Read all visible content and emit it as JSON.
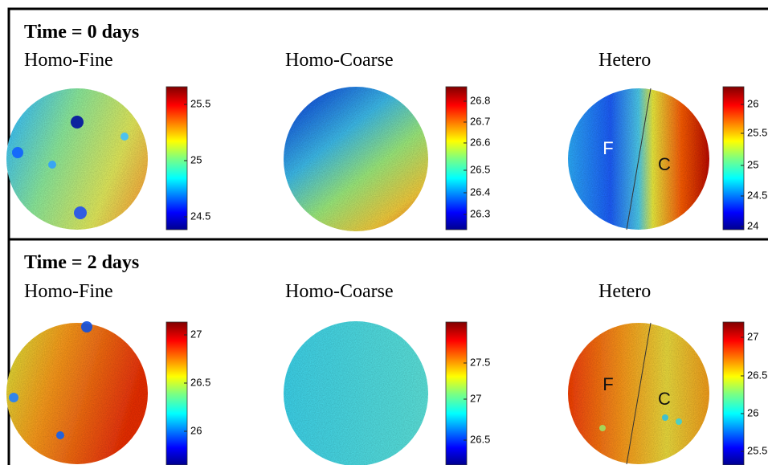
{
  "rows": [
    {
      "title": "Time = 0 days",
      "panels": [
        {
          "label": "Homo-Fine",
          "colorbar_ticks": [
            "25.5",
            "25",
            "24.5"
          ]
        },
        {
          "label": "Homo-Coarse",
          "colorbar_ticks": [
            "26.8",
            "26.7",
            "26.6",
            "26.5",
            "26.4",
            "26.3"
          ]
        },
        {
          "label": "Hetero",
          "colorbar_ticks": [
            "26",
            "25.5",
            "25",
            "24.5",
            "24"
          ],
          "annotations": [
            "F",
            "C"
          ]
        }
      ]
    },
    {
      "title": "Time = 2 days",
      "panels": [
        {
          "label": "Homo-Fine",
          "colorbar_ticks": [
            "27",
            "26.5",
            "26"
          ]
        },
        {
          "label": "Homo-Coarse",
          "colorbar_ticks": [
            "27.5",
            "27",
            "26.5"
          ]
        },
        {
          "label": "Hetero",
          "colorbar_ticks": [
            "27",
            "26.5",
            "26",
            "25.5"
          ],
          "annotations": [
            "F",
            "C"
          ]
        }
      ]
    }
  ]
}
